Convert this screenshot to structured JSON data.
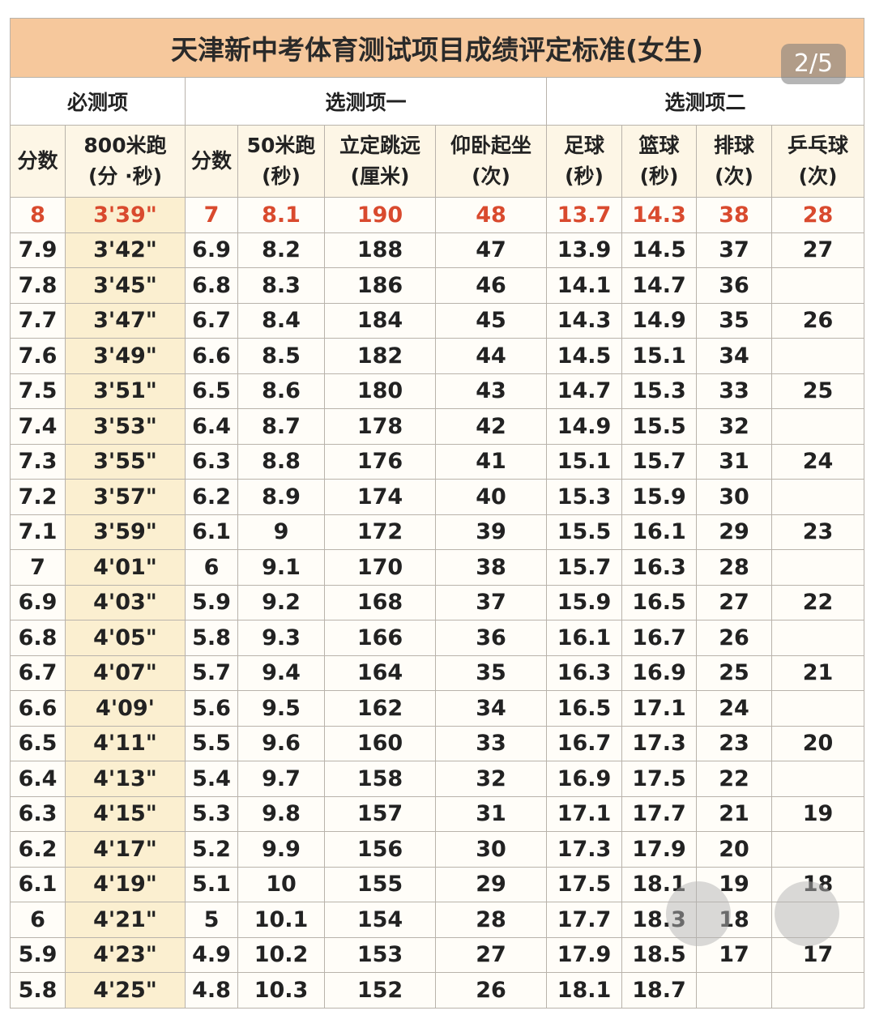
{
  "title": "天津新中考体育测试项目成绩评定标准(女生)",
  "page_indicator": "2/5",
  "table": {
    "groups": [
      {
        "label": "必测项",
        "span": 2
      },
      {
        "label": "选测项一",
        "span": 4
      },
      {
        "label": "选测项二",
        "span": 4
      }
    ],
    "columns": [
      {
        "label": "分数"
      },
      {
        "label": "800米跑",
        "unit": "(分 ·秒)"
      },
      {
        "label": "分数"
      },
      {
        "label": "50米跑",
        "unit": "(秒)"
      },
      {
        "label": "立定跳远",
        "unit": "(厘米)"
      },
      {
        "label": "仰卧起坐",
        "unit": "(次)"
      },
      {
        "label": "足球",
        "unit": "(秒)"
      },
      {
        "label": "篮球",
        "unit": "(秒)"
      },
      {
        "label": "排球",
        "unit": "(次)"
      },
      {
        "label": "乒乓球",
        "unit": "(次)"
      }
    ],
    "rows": [
      [
        "8",
        "3'39\"",
        "7",
        "8.1",
        "190",
        "48",
        "13.7",
        "14.3",
        "38",
        "28"
      ],
      [
        "7.9",
        "3'42\"",
        "6.9",
        "8.2",
        "188",
        "47",
        "13.9",
        "14.5",
        "37",
        "27"
      ],
      [
        "7.8",
        "3'45\"",
        "6.8",
        "8.3",
        "186",
        "46",
        "14.1",
        "14.7",
        "36",
        null
      ],
      [
        "7.7",
        "3'47\"",
        "6.7",
        "8.4",
        "184",
        "45",
        "14.3",
        "14.9",
        "35",
        "26"
      ],
      [
        "7.6",
        "3'49\"",
        "6.6",
        "8.5",
        "182",
        "44",
        "14.5",
        "15.1",
        "34",
        null
      ],
      [
        "7.5",
        "3'51\"",
        "6.5",
        "8.6",
        "180",
        "43",
        "14.7",
        "15.3",
        "33",
        "25"
      ],
      [
        "7.4",
        "3'53\"",
        "6.4",
        "8.7",
        "178",
        "42",
        "14.9",
        "15.5",
        "32",
        null
      ],
      [
        "7.3",
        "3'55\"",
        "6.3",
        "8.8",
        "176",
        "41",
        "15.1",
        "15.7",
        "31",
        "24"
      ],
      [
        "7.2",
        "3'57\"",
        "6.2",
        "8.9",
        "174",
        "40",
        "15.3",
        "15.9",
        "30",
        null
      ],
      [
        "7.1",
        "3'59\"",
        "6.1",
        "9",
        "172",
        "39",
        "15.5",
        "16.1",
        "29",
        "23"
      ],
      [
        "7",
        "4'01\"",
        "6",
        "9.1",
        "170",
        "38",
        "15.7",
        "16.3",
        "28",
        null
      ],
      [
        "6.9",
        "4'03\"",
        "5.9",
        "9.2",
        "168",
        "37",
        "15.9",
        "16.5",
        "27",
        "22"
      ],
      [
        "6.8",
        "4'05\"",
        "5.8",
        "9.3",
        "166",
        "36",
        "16.1",
        "16.7",
        "26",
        null
      ],
      [
        "6.7",
        "4'07\"",
        "5.7",
        "9.4",
        "164",
        "35",
        "16.3",
        "16.9",
        "25",
        "21"
      ],
      [
        "6.6",
        "4'09'",
        "5.6",
        "9.5",
        "162",
        "34",
        "16.5",
        "17.1",
        "24",
        null
      ],
      [
        "6.5",
        "4'11\"",
        "5.5",
        "9.6",
        "160",
        "33",
        "16.7",
        "17.3",
        "23",
        "20"
      ],
      [
        "6.4",
        "4'13\"",
        "5.4",
        "9.7",
        "158",
        "32",
        "16.9",
        "17.5",
        "22",
        null
      ],
      [
        "6.3",
        "4'15\"",
        "5.3",
        "9.8",
        "157",
        "31",
        "17.1",
        "17.7",
        "21",
        "19"
      ],
      [
        "6.2",
        "4'17\"",
        "5.2",
        "9.9",
        "156",
        "30",
        "17.3",
        "17.9",
        "20",
        null
      ],
      [
        "6.1",
        "4'19\"",
        "5.1",
        "10",
        "155",
        "29",
        "17.5",
        "18.1",
        "19",
        "18"
      ],
      [
        "6",
        "4'21\"",
        "5",
        "10.1",
        "154",
        "28",
        "17.7",
        "18.3",
        "18",
        null
      ],
      [
        "5.9",
        "4'23\"",
        "4.9",
        "10.2",
        "153",
        "27",
        "17.9",
        "18.5",
        "17",
        "17"
      ],
      [
        "5.8",
        "4'25\"",
        "4.8",
        "10.3",
        "152",
        "26",
        "18.1",
        "18.7",
        null,
        null
      ]
    ]
  }
}
